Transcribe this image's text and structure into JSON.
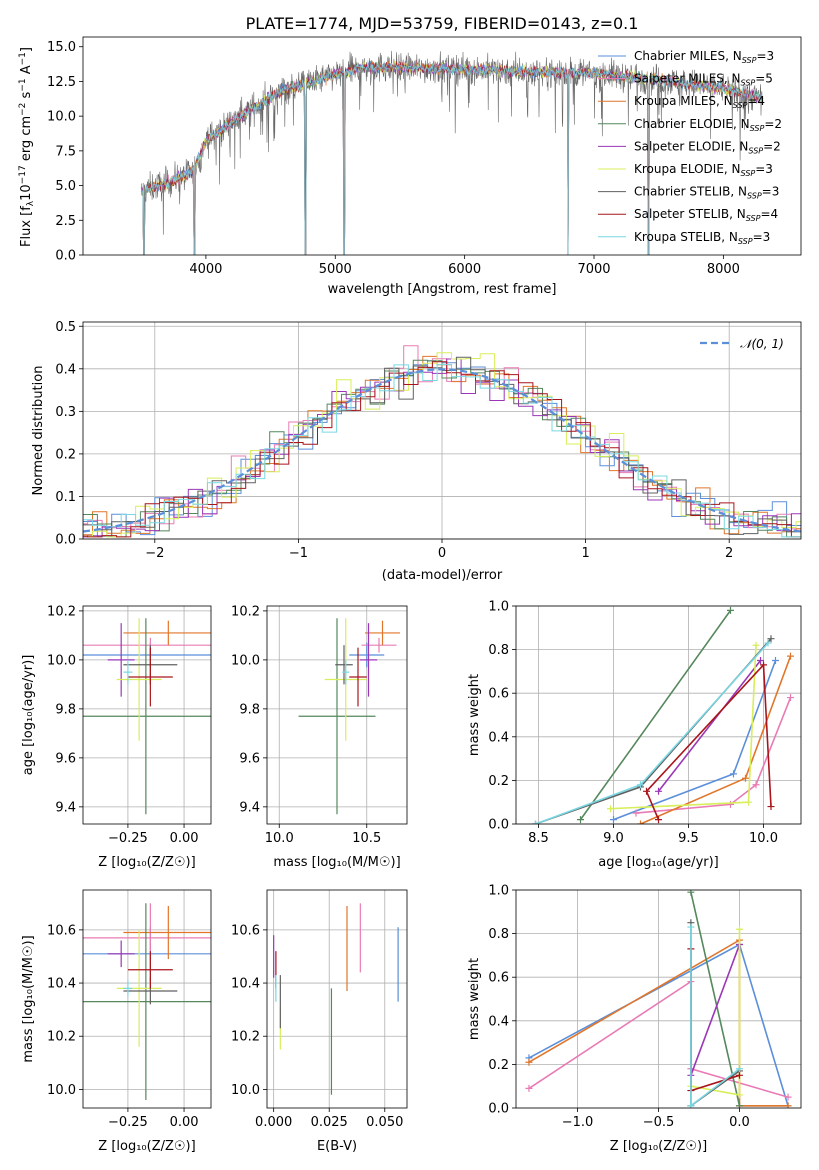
{
  "figure": {
    "title": "PLATE=1774, MJD=53759, FIBERID=0143, z=0.1"
  },
  "colors": {
    "chabrier_miles": "#5b8fd9",
    "salpeter_miles": "#e87bb5",
    "kroupa_miles": "#e1762a",
    "chabrier_elodie": "#55885c",
    "salpeter_elodie": "#9b36b7",
    "kroupa_elodie": "#d8ee5a",
    "chabrier_stelib": "#606060",
    "salpeter_stelib": "#a8161c",
    "kroupa_stelib": "#79d7e2"
  },
  "chart_data": [
    {
      "id": "spectrum",
      "type": "line",
      "title": "PLATE=1774, MJD=53759, FIBERID=0143, z=0.1",
      "xlabel": "wavelength [Angstrom, rest frame]",
      "ylabel": "Flux [f_λ 10^-17 erg cm^-2 s^-1 A^-1]",
      "xlim": [
        3050,
        8600
      ],
      "ylim": [
        0,
        15.7
      ],
      "xticks": [
        "4000",
        "5000",
        "6000",
        "7000",
        "8000"
      ],
      "yticks": [
        "0.0",
        "2.5",
        "5.0",
        "7.5",
        "10.0",
        "12.5",
        "15.0"
      ],
      "legend": [
        {
          "label": "Chabrier MILES, N",
          "sub": "SSP",
          "suffix": "=3",
          "color_key": "chabrier_miles"
        },
        {
          "label": "Salpeter MILES, N",
          "sub": "SSP",
          "suffix": "=5",
          "color_key": "salpeter_miles"
        },
        {
          "label": "Kroupa MILES, N",
          "sub": "SSP",
          "suffix": "=4",
          "color_key": "kroupa_miles"
        },
        {
          "label": "Chabrier ELODIE, N",
          "sub": "SSP",
          "suffix": "=2",
          "color_key": "chabrier_elodie"
        },
        {
          "label": "Salpeter ELODIE, N",
          "sub": "SSP",
          "suffix": "=2",
          "color_key": "salpeter_elodie"
        },
        {
          "label": "Kroupa ELODIE, N",
          "sub": "SSP",
          "suffix": "=3",
          "color_key": "kroupa_elodie"
        },
        {
          "label": "Chabrier STELIB, N",
          "sub": "SSP",
          "suffix": "=3",
          "color_key": "chabrier_stelib"
        },
        {
          "label": "Salpeter STELIB, N",
          "sub": "SSP",
          "suffix": "=4",
          "color_key": "salpeter_stelib"
        },
        {
          "label": "Kroupa STELIB, N",
          "sub": "SSP",
          "suffix": "=3",
          "color_key": "kroupa_stelib"
        }
      ],
      "legend_position": "right",
      "continuum": [
        [
          3500,
          4.6
        ],
        [
          3700,
          5.2
        ],
        [
          3900,
          6.0
        ],
        [
          4000,
          8.2
        ],
        [
          4200,
          9.6
        ],
        [
          4400,
          10.8
        ],
        [
          4600,
          11.9
        ],
        [
          4800,
          12.4
        ],
        [
          5000,
          13.0
        ],
        [
          5200,
          13.5
        ],
        [
          5500,
          13.5
        ],
        [
          6000,
          13.4
        ],
        [
          6500,
          13.2
        ],
        [
          7000,
          13.1
        ],
        [
          7500,
          12.6
        ],
        [
          8000,
          12.0
        ],
        [
          8300,
          11.3
        ]
      ],
      "drops": [
        3520,
        3910,
        4770,
        5070,
        6800,
        7420
      ]
    },
    {
      "id": "residuals",
      "type": "line",
      "xlabel": "(data-model)/error",
      "ylabel": "Normed distribution",
      "xlim": [
        -2.5,
        2.5
      ],
      "ylim": [
        0,
        0.51
      ],
      "xticks": [
        "−2",
        "−1",
        "0",
        "1",
        "2"
      ],
      "yticks": [
        "0.0",
        "0.1",
        "0.2",
        "0.3",
        "0.4",
        "0.5"
      ],
      "grid": true,
      "legend": [
        {
          "label": "𝒩(0, 1)"
        }
      ],
      "legend_position": "top-right",
      "bin_width": 0.1
    },
    {
      "id": "age_vs_z",
      "type": "scatter",
      "xlabel": "Z [log₁₀(Z/Z☉)]",
      "ylabel": "age  [log₁₀(age/yr)]",
      "xlim": [
        -0.45,
        0.12
      ],
      "ylim": [
        9.33,
        10.22
      ],
      "xticks": [
        "−0.25",
        "0.00"
      ],
      "yticks": [
        "9.4",
        "9.6",
        "9.8",
        "10.0",
        "10.2"
      ],
      "grid": true,
      "errorbars": [
        {
          "c": "chabrier_miles",
          "x": -0.15,
          "xerr": 0.35,
          "y": 10.02,
          "yerr": 0.05
        },
        {
          "c": "salpeter_miles",
          "x": -0.15,
          "xerr": 0.35,
          "y": 10.06,
          "yerr": 0.03
        },
        {
          "c": "kroupa_miles",
          "x": -0.07,
          "xerr": 0.2,
          "y": 10.11,
          "yerr": 0.05
        },
        {
          "c": "chabrier_elodie",
          "x": -0.17,
          "xerr": 0.35,
          "y": 9.77,
          "yerr": 0.4
        },
        {
          "c": "salpeter_elodie",
          "x": -0.28,
          "xerr": 0.06,
          "y": 10.0,
          "yerr": 0.15
        },
        {
          "c": "kroupa_elodie",
          "x": -0.2,
          "xerr": 0.1,
          "y": 9.92,
          "yerr": 0.25
        },
        {
          "c": "chabrier_stelib",
          "x": -0.15,
          "xerr": 0.12,
          "y": 9.98,
          "yerr": 0.08
        },
        {
          "c": "salpeter_stelib",
          "x": -0.15,
          "xerr": 0.1,
          "y": 9.93,
          "yerr": 0.12
        },
        {
          "c": "kroupa_stelib",
          "x": -0.25,
          "xerr": 0.02,
          "y": 9.95,
          "yerr": 0.05
        }
      ]
    },
    {
      "id": "age_vs_mass",
      "type": "scatter",
      "xlabel": "mass [log₁₀(M/M☉)]",
      "xlim": [
        9.93,
        10.73
      ],
      "ylim": [
        9.33,
        10.22
      ],
      "xticks": [
        "10.0",
        "10.5"
      ],
      "yticks": [
        "9.4",
        "9.6",
        "9.8",
        "10.0",
        "10.2"
      ],
      "grid": true,
      "errorbars": [
        {
          "c": "chabrier_miles",
          "x": 10.5,
          "xerr": 0.1,
          "y": 10.02,
          "yerr": 0.05
        },
        {
          "c": "salpeter_miles",
          "x": 10.57,
          "xerr": 0.1,
          "y": 10.06,
          "yerr": 0.03
        },
        {
          "c": "kroupa_miles",
          "x": 10.59,
          "xerr": 0.1,
          "y": 10.11,
          "yerr": 0.05
        },
        {
          "c": "chabrier_elodie",
          "x": 10.33,
          "xerr": 0.22,
          "y": 9.77,
          "yerr": 0.4
        },
        {
          "c": "salpeter_elodie",
          "x": 10.51,
          "xerr": 0.05,
          "y": 10.0,
          "yerr": 0.15
        },
        {
          "c": "kroupa_elodie",
          "x": 10.38,
          "xerr": 0.12,
          "y": 9.92,
          "yerr": 0.25
        },
        {
          "c": "chabrier_stelib",
          "x": 10.37,
          "xerr": 0.05,
          "y": 9.98,
          "yerr": 0.08
        },
        {
          "c": "salpeter_stelib",
          "x": 10.45,
          "xerr": 0.05,
          "y": 9.93,
          "yerr": 0.12
        },
        {
          "c": "kroupa_stelib",
          "x": 10.38,
          "xerr": 0.02,
          "y": 9.95,
          "yerr": 0.05
        }
      ]
    },
    {
      "id": "weight_vs_age",
      "type": "line",
      "xlabel": "age  [log₁₀(age/yr)]",
      "ylabel": "mass weight",
      "xlim": [
        8.35,
        10.25
      ],
      "ylim": [
        0,
        1
      ],
      "xticks": [
        "8.5",
        "9.0",
        "9.5",
        "10.0"
      ],
      "yticks": [
        "0.0",
        "0.2",
        "0.4",
        "0.6",
        "0.8",
        "1.0"
      ],
      "grid": true,
      "series": [
        {
          "c": "chabrier_miles",
          "points": [
            [
              9.0,
              0.02
            ],
            [
              9.8,
              0.23
            ],
            [
              10.08,
              0.75
            ]
          ]
        },
        {
          "c": "salpeter_miles",
          "points": [
            [
              9.15,
              0.05
            ],
            [
              9.78,
              0.09
            ],
            [
              9.95,
              0.18
            ],
            [
              10.18,
              0.58
            ]
          ]
        },
        {
          "c": "kroupa_miles",
          "points": [
            [
              9.18,
              0.0
            ],
            [
              9.88,
              0.21
            ],
            [
              10.18,
              0.77
            ]
          ]
        },
        {
          "c": "chabrier_elodie",
          "points": [
            [
              8.78,
              0.02
            ],
            [
              9.78,
              0.98
            ]
          ]
        },
        {
          "c": "salpeter_elodie",
          "points": [
            [
              9.3,
              0.15
            ],
            [
              9.98,
              0.75
            ]
          ]
        },
        {
          "c": "kroupa_elodie",
          "points": [
            [
              8.98,
              0.07
            ],
            [
              9.9,
              0.1
            ],
            [
              9.95,
              0.82
            ]
          ]
        },
        {
          "c": "chabrier_stelib",
          "points": [
            [
              8.48,
              0.0
            ],
            [
              9.18,
              0.17
            ],
            [
              10.05,
              0.85
            ]
          ]
        },
        {
          "c": "salpeter_stelib",
          "points": [
            [
              9.3,
              0.02
            ],
            [
              9.22,
              0.15
            ],
            [
              10.0,
              0.73
            ],
            [
              10.05,
              0.08
            ]
          ]
        },
        {
          "c": "kroupa_stelib",
          "points": [
            [
              8.48,
              0.0
            ],
            [
              9.18,
              0.18
            ],
            [
              10.03,
              0.83
            ]
          ]
        }
      ]
    },
    {
      "id": "mass_vs_z",
      "type": "scatter",
      "xlabel": "Z [log₁₀(Z/Z☉)]",
      "ylabel": "mass [log₁₀(M/M☉)]",
      "xlim": [
        -0.45,
        0.12
      ],
      "ylim": [
        9.93,
        10.75
      ],
      "xticks": [
        "−0.25",
        "0.00"
      ],
      "yticks": [
        "10.0",
        "10.2",
        "10.4",
        "10.6"
      ],
      "grid": true,
      "errorbars": [
        {
          "c": "chabrier_miles",
          "x": -0.15,
          "xerr": 0.35,
          "y": 10.51,
          "yerr": 0.1
        },
        {
          "c": "salpeter_miles",
          "x": -0.15,
          "xerr": 0.35,
          "y": 10.57,
          "yerr": 0.13
        },
        {
          "c": "kroupa_miles",
          "x": -0.07,
          "xerr": 0.2,
          "y": 10.59,
          "yerr": 0.1
        },
        {
          "c": "chabrier_elodie",
          "x": -0.17,
          "xerr": 0.35,
          "y": 10.33,
          "yerr": 0.37
        },
        {
          "c": "salpeter_elodie",
          "x": -0.28,
          "xerr": 0.06,
          "y": 10.51,
          "yerr": 0.05
        },
        {
          "c": "kroupa_elodie",
          "x": -0.2,
          "xerr": 0.1,
          "y": 10.38,
          "yerr": 0.22
        },
        {
          "c": "chabrier_stelib",
          "x": -0.15,
          "xerr": 0.12,
          "y": 10.37,
          "yerr": 0.05
        },
        {
          "c": "salpeter_stelib",
          "x": -0.15,
          "xerr": 0.1,
          "y": 10.45,
          "yerr": 0.07
        },
        {
          "c": "kroupa_stelib",
          "x": -0.25,
          "xerr": 0.02,
          "y": 10.38,
          "yerr": 0.03
        }
      ]
    },
    {
      "id": "mass_vs_ebv",
      "type": "scatter",
      "xlabel": "E(B-V)",
      "xlim": [
        -0.003,
        0.06
      ],
      "ylim": [
        9.93,
        10.75
      ],
      "xticks": [
        "0.000",
        "0.025",
        "0.050"
      ],
      "yticks": [
        "10.0",
        "10.2",
        "10.4",
        "10.6"
      ],
      "grid": true,
      "errorbars": [
        {
          "c": "chabrier_miles",
          "x": 0.056,
          "xerr": 0,
          "y": 10.47,
          "yerr": 0.14
        },
        {
          "c": "salpeter_miles",
          "x": 0.039,
          "xerr": 0,
          "y": 10.57,
          "yerr": 0.13
        },
        {
          "c": "kroupa_miles",
          "x": 0.033,
          "xerr": 0,
          "y": 10.53,
          "yerr": 0.16
        },
        {
          "c": "chabrier_elodie",
          "x": 0.026,
          "xerr": 0,
          "y": 10.18,
          "yerr": 0.2
        },
        {
          "c": "salpeter_elodie",
          "x": 0.0,
          "xerr": 0,
          "y": 10.5,
          "yerr": 0.08
        },
        {
          "c": "kroupa_elodie",
          "x": 0.003,
          "xerr": 0,
          "y": 10.23,
          "yerr": 0.08
        },
        {
          "c": "chabrier_stelib",
          "x": 0.003,
          "xerr": 0,
          "y": 10.33,
          "yerr": 0.1
        },
        {
          "c": "salpeter_stelib",
          "x": 0.001,
          "xerr": 0,
          "y": 10.45,
          "yerr": 0.07
        },
        {
          "c": "kroupa_stelib",
          "x": 0.001,
          "xerr": 0,
          "y": 10.38,
          "yerr": 0.05
        }
      ]
    },
    {
      "id": "weight_vs_z",
      "type": "line",
      "xlabel": "Z [log₁₀(Z/Z☉)]",
      "ylabel": "mass weight",
      "xlim": [
        -1.38,
        0.38
      ],
      "ylim": [
        0,
        1
      ],
      "xticks": [
        "−1.0",
        "−0.5",
        "0.0"
      ],
      "yticks": [
        "0.0",
        "0.2",
        "0.4",
        "0.6",
        "0.8",
        "1.0"
      ],
      "grid": true,
      "series": [
        {
          "c": "chabrier_miles",
          "points": [
            [
              -1.3,
              0.23
            ],
            [
              0.0,
              0.75
            ],
            [
              0.3,
              0.01
            ],
            [
              0.0,
              0.01
            ]
          ]
        },
        {
          "c": "salpeter_miles",
          "points": [
            [
              -1.3,
              0.09
            ],
            [
              -0.3,
              0.58
            ],
            [
              -0.3,
              0.18
            ],
            [
              0.3,
              0.05
            ]
          ]
        },
        {
          "c": "kroupa_miles",
          "points": [
            [
              -1.3,
              0.21
            ],
            [
              0.0,
              0.77
            ],
            [
              0.0,
              0.01
            ],
            [
              0.3,
              0.01
            ]
          ]
        },
        {
          "c": "chabrier_elodie",
          "points": [
            [
              -0.3,
              0.99
            ],
            [
              0.0,
              0.01
            ]
          ]
        },
        {
          "c": "salpeter_elodie",
          "points": [
            [
              -0.3,
              0.15
            ],
            [
              0.0,
              0.75
            ]
          ]
        },
        {
          "c": "kroupa_elodie",
          "points": [
            [
              -0.3,
              0.1
            ],
            [
              0.0,
              0.06
            ],
            [
              0.0,
              0.82
            ]
          ]
        },
        {
          "c": "chabrier_stelib",
          "points": [
            [
              -0.3,
              0.85
            ],
            [
              -0.3,
              0.01
            ],
            [
              0.0,
              0.17
            ]
          ]
        },
        {
          "c": "salpeter_stelib",
          "points": [
            [
              -0.3,
              0.73
            ],
            [
              -0.3,
              0.08
            ],
            [
              0.0,
              0.15
            ]
          ]
        },
        {
          "c": "kroupa_stelib",
          "points": [
            [
              -0.3,
              0.83
            ],
            [
              -0.3,
              0.01
            ],
            [
              0.0,
              0.18
            ]
          ]
        }
      ]
    }
  ]
}
